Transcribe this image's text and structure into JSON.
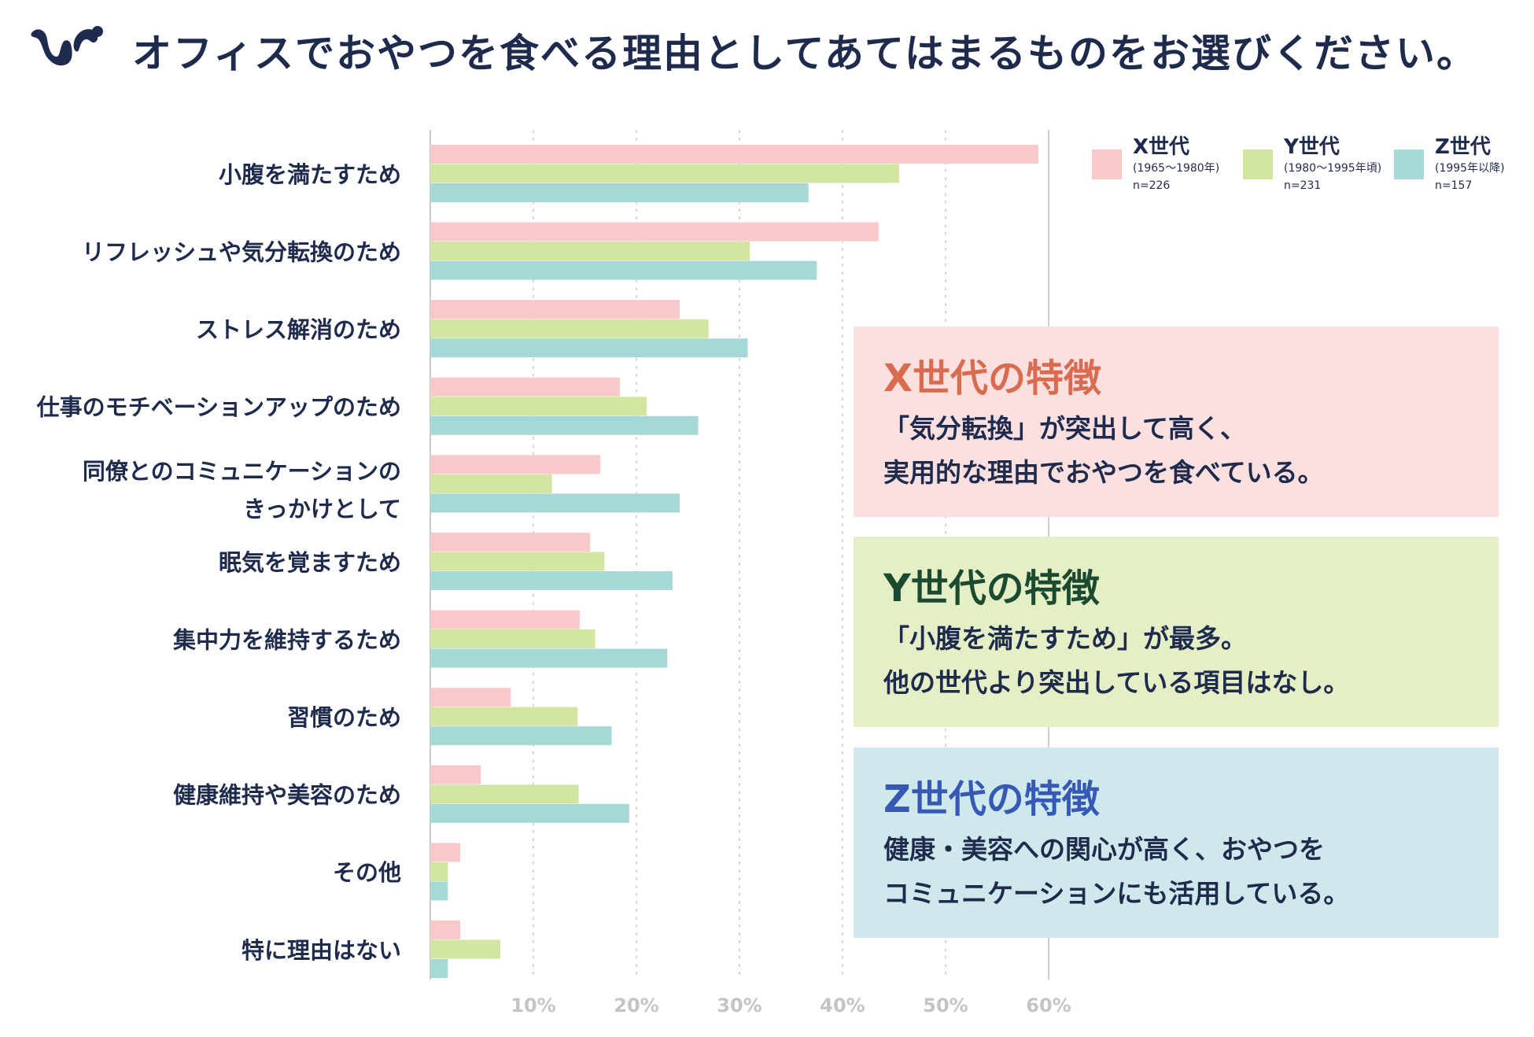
{
  "title": "オフィスでおやつを食べる理由としてあてはまるものをお選びください。",
  "colors": {
    "x": "#f9c9c9",
    "y": "#d3e6a1",
    "z": "#a6d8d8",
    "text": "#1f2b4d"
  },
  "legend": [
    {
      "name": "X世代",
      "years": "(1965〜1980年)",
      "n": "n=226",
      "color": "#f9c9c9"
    },
    {
      "name": "Y世代",
      "years": "(1980〜1995年頃)",
      "n": "n=231",
      "color": "#d3e6a1"
    },
    {
      "name": "Z世代",
      "years": "(1995年以降)",
      "n": "n=157",
      "color": "#a6d8d8"
    }
  ],
  "notes": [
    {
      "title": "X世代の特徴",
      "lines": [
        "「気分転換」が突出して高く、",
        "実用的な理由でおやつを食べている。"
      ]
    },
    {
      "title": "Y世代の特徴",
      "lines": [
        "「小腹を満たすため」が最多。",
        "他の世代より突出している項目はなし。"
      ]
    },
    {
      "title": "Z世代の特徴",
      "lines": [
        "健康・美容への関心が高く、おやつを",
        "コミュニケーションにも活用している。"
      ]
    }
  ],
  "chart_data": {
    "type": "bar",
    "orientation": "horizontal",
    "title": "オフィスでおやつを食べる理由としてあてはまるものをお選びください。",
    "categories": [
      [
        "小腹を満たすため"
      ],
      [
        "リフレッシュや気分転換のため"
      ],
      [
        "ストレス解消のため"
      ],
      [
        "仕事のモチベーションアップのため"
      ],
      [
        "同僚とのコミュニケーションの",
        "きっかけとして"
      ],
      [
        "眠気を覚ますため"
      ],
      [
        "集中力を維持するため"
      ],
      [
        "習慣のため"
      ],
      [
        "健康維持や美容のため"
      ],
      [
        "その他"
      ],
      [
        "特に理由はない"
      ]
    ],
    "series": [
      {
        "name": "X世代",
        "values": [
          59,
          43.5,
          24.2,
          18.4,
          16.5,
          15.5,
          14.5,
          7.8,
          4.9,
          2.9,
          2.9
        ]
      },
      {
        "name": "Y世代",
        "values": [
          45.5,
          31,
          27,
          21,
          11.8,
          16.9,
          16,
          14.3,
          14.4,
          1.7,
          6.8
        ]
      },
      {
        "name": "Z世代",
        "values": [
          36.7,
          37.5,
          30.8,
          26,
          24.2,
          23.5,
          23,
          17.6,
          19.3,
          1.7,
          1.7
        ]
      }
    ],
    "xticks": [
      "10%",
      "20%",
      "30%",
      "40%",
      "50%",
      "60%"
    ],
    "xlim": [
      0,
      60
    ],
    "grid": true
  }
}
